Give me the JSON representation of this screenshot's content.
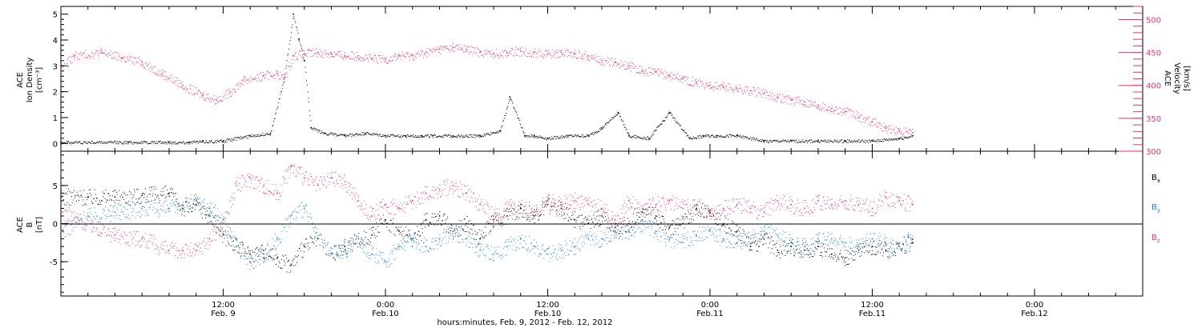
{
  "chart_data": [
    {
      "type": "scatter",
      "panel": "top",
      "ylabel_left": [
        "ACE",
        "Ion Density",
        "[cm⁻³]"
      ],
      "ylabel_right": [
        "ACE",
        "Velocity",
        "[km/s]"
      ],
      "y_left_ticks": [
        0,
        1,
        2,
        3,
        4,
        5
      ],
      "y_left_range": [
        -0.3,
        5.3
      ],
      "y_right_ticks": [
        300,
        350,
        400,
        450,
        500
      ],
      "y_right_range": [
        300,
        520
      ],
      "x_range_hours": [
        0,
        64
      ],
      "series": [
        {
          "axis": "left",
          "color": "#000000",
          "x": [
            0,
            5,
            8,
            9.5,
            10.5,
            12,
            14,
            15.5,
            16.5,
            17.2,
            17.6,
            18,
            18.5,
            19.5,
            21,
            22.5,
            24,
            25.5,
            26.7,
            27.5,
            29,
            31,
            32.5,
            33.2,
            34.3,
            35,
            36,
            37.5,
            39,
            40,
            41.2,
            42,
            43.5,
            45,
            46.5,
            47.5,
            48.5,
            50,
            52,
            54,
            56,
            58,
            60,
            62,
            63
          ],
          "y": [
            0.05,
            0.05,
            0.05,
            0.05,
            0.08,
            0.1,
            0.3,
            0.4,
            2.5,
            5.0,
            4.0,
            3.2,
            0.6,
            0.4,
            0.3,
            0.4,
            0.3,
            0.3,
            0.3,
            0.3,
            0.3,
            0.3,
            0.5,
            1.8,
            0.3,
            0.3,
            0.2,
            0.3,
            0.3,
            0.6,
            1.2,
            0.3,
            0.2,
            1.2,
            0.2,
            0.3,
            0.3,
            0.3,
            0.1,
            0.1,
            0.1,
            0.1,
            0.1,
            0.2,
            0.3
          ]
        },
        {
          "axis": "right",
          "color": "#e8336b",
          "x": [
            0,
            1,
            3,
            4.5,
            6,
            7.5,
            9,
            10.5,
            11.5,
            12.5,
            13.5,
            15,
            16,
            16.5,
            17.2,
            18,
            19,
            20,
            21,
            22,
            23,
            24,
            25,
            26,
            27,
            28,
            29,
            30,
            31,
            32,
            33,
            34,
            35,
            36,
            37,
            38,
            39,
            40,
            41,
            42,
            43,
            44,
            45,
            46,
            47,
            48,
            49,
            50,
            51,
            52,
            53,
            54,
            55,
            56,
            57,
            58,
            59,
            60,
            61,
            62,
            63
          ],
          "y": [
            425,
            445,
            450,
            442,
            435,
            418,
            400,
            385,
            378,
            390,
            408,
            415,
            418,
            410,
            445,
            448,
            450,
            448,
            445,
            445,
            440,
            440,
            445,
            445,
            450,
            455,
            458,
            455,
            450,
            448,
            450,
            452,
            450,
            448,
            450,
            448,
            445,
            438,
            435,
            430,
            422,
            420,
            415,
            410,
            405,
            400,
            398,
            395,
            392,
            388,
            382,
            378,
            375,
            370,
            365,
            360,
            352,
            345,
            335,
            330,
            328
          ]
        }
      ]
    },
    {
      "type": "scatter",
      "panel": "bottom",
      "ylabel_left": [
        "ACE",
        "B",
        "[nT]"
      ],
      "y_ticks": [
        -5,
        0,
        5
      ],
      "y_range": [
        -9.5,
        9.5
      ],
      "x_range_hours": [
        0,
        64
      ],
      "series": [
        {
          "name": "B",
          "sub": "x",
          "color": "#000000",
          "x": [
            0,
            2,
            4,
            6,
            8,
            9,
            10,
            11,
            12,
            13,
            14,
            15,
            16,
            17,
            18,
            19,
            20,
            21,
            22,
            23,
            24,
            25,
            26,
            27,
            28,
            29,
            30,
            31,
            32,
            33,
            34,
            35,
            36,
            37,
            38,
            39,
            40,
            41,
            42,
            43,
            44,
            45,
            46,
            47,
            48,
            49,
            50,
            51,
            52,
            53,
            54,
            55,
            56,
            57,
            58,
            59,
            60,
            61,
            62,
            63
          ],
          "y": [
            3.5,
            3.5,
            3.5,
            3.7,
            4.0,
            2.0,
            2.5,
            1.0,
            -1.5,
            -3.0,
            -4.0,
            -3.5,
            -4.5,
            -5.5,
            -3.0,
            -2.0,
            -4.0,
            -3.0,
            -2.0,
            -1.5,
            0.5,
            -1.0,
            -2.0,
            0.5,
            1.0,
            -1.0,
            0.0,
            -2.0,
            0.5,
            1.0,
            2.0,
            1.0,
            2.5,
            2.0,
            0.5,
            0.0,
            1.0,
            -0.5,
            0.0,
            1.5,
            1.0,
            -0.5,
            0.0,
            2.0,
            1.5,
            0.0,
            -1.0,
            -3.0,
            -2.0,
            -3.5,
            -3.0,
            -3.5,
            -3.0,
            -4.0,
            -4.5,
            -3.5,
            -3.0,
            -3.5,
            -3.0,
            -2.5
          ]
        },
        {
          "name": "B",
          "sub": "y",
          "color": "#1a82d9",
          "x": [
            0,
            2,
            4,
            6,
            8,
            9,
            10,
            11,
            12,
            13,
            14,
            15,
            16,
            17,
            18,
            19,
            20,
            21,
            22,
            23,
            24,
            25,
            26,
            27,
            28,
            29,
            30,
            31,
            32,
            33,
            34,
            35,
            36,
            37,
            38,
            39,
            40,
            41,
            42,
            43,
            44,
            45,
            46,
            47,
            48,
            49,
            50,
            51,
            52,
            53,
            54,
            55,
            56,
            57,
            58,
            59,
            60,
            61,
            62,
            63
          ],
          "y": [
            -1.0,
            1.0,
            1.5,
            2.0,
            2.0,
            2.5,
            3.0,
            2.0,
            0.5,
            -3.0,
            -5.0,
            -4.0,
            -2.0,
            1.0,
            2.0,
            -2.0,
            -4.0,
            -3.5,
            -2.0,
            -4.0,
            -5.0,
            -3.0,
            -2.0,
            -3.0,
            -2.0,
            -1.0,
            -2.0,
            -3.5,
            -4.0,
            -3.0,
            -2.0,
            -3.0,
            -4.0,
            -3.5,
            -3.0,
            -2.0,
            -2.0,
            -1.0,
            -1.0,
            0.0,
            -1.0,
            -2.0,
            -2.5,
            -1.5,
            -1.0,
            -2.0,
            -2.5,
            -2.0,
            -1.0,
            -1.5,
            -2.5,
            -3.0,
            -2.0,
            -2.0,
            -2.5,
            -3.0,
            -2.0,
            -2.5,
            -3.0,
            -2.0
          ]
        },
        {
          "name": "B",
          "sub": "z",
          "color": "#e8336b",
          "x": [
            0,
            2,
            4,
            6,
            8,
            9,
            10,
            11,
            12,
            13,
            14,
            15,
            16,
            17,
            18,
            19,
            20,
            21,
            22,
            23,
            24,
            25,
            26,
            27,
            28,
            29,
            30,
            31,
            32,
            33,
            34,
            35,
            36,
            37,
            38,
            39,
            40,
            41,
            42,
            43,
            44,
            45,
            46,
            47,
            48,
            49,
            50,
            51,
            52,
            53,
            54,
            55,
            56,
            57,
            58,
            59,
            60,
            61,
            62,
            63
          ],
          "y": [
            1.5,
            0.0,
            -1.5,
            -2.0,
            -3.5,
            -3.5,
            -3.5,
            -2.0,
            0.0,
            5.0,
            6.0,
            5.0,
            4.0,
            7.5,
            6.0,
            5.0,
            6.0,
            5.5,
            3.0,
            1.0,
            2.5,
            2.0,
            3.0,
            4.0,
            4.5,
            5.0,
            4.0,
            2.5,
            1.0,
            2.0,
            2.5,
            1.5,
            3.0,
            2.5,
            3.0,
            2.5,
            2.0,
            0.5,
            3.0,
            2.0,
            2.5,
            3.0,
            2.0,
            2.5,
            1.0,
            2.0,
            2.5,
            2.0,
            1.5,
            3.0,
            2.5,
            2.0,
            3.0,
            2.5,
            3.0,
            2.5,
            2.0,
            3.5,
            3.0,
            2.5
          ]
        }
      ]
    }
  ],
  "x_axis": {
    "ticks": [
      {
        "hour": 12,
        "time": "12:00",
        "date": "Feb. 9"
      },
      {
        "hour": 24,
        "time": "0:00",
        "date": "Feb.10"
      },
      {
        "hour": 36,
        "time": "12:00",
        "date": "Feb.10"
      },
      {
        "hour": 48,
        "time": "0:00",
        "date": "Feb.11"
      },
      {
        "hour": 60,
        "time": "12:00",
        "date": "Feb.11"
      },
      {
        "hour": 72,
        "time": "0:00",
        "date": "Feb.12"
      }
    ],
    "title": "hours:minutes, Feb.  9, 2012 - Feb. 12, 2012",
    "span_hours": [
      0,
      80
    ]
  },
  "legend": {
    "bx": {
      "base": "B",
      "sub": "x",
      "color": "#000000"
    },
    "by": {
      "base": "B",
      "sub": "y",
      "color": "#1a82d9"
    },
    "bz": {
      "base": "B",
      "sub": "z",
      "color": "#e8336b"
    }
  }
}
